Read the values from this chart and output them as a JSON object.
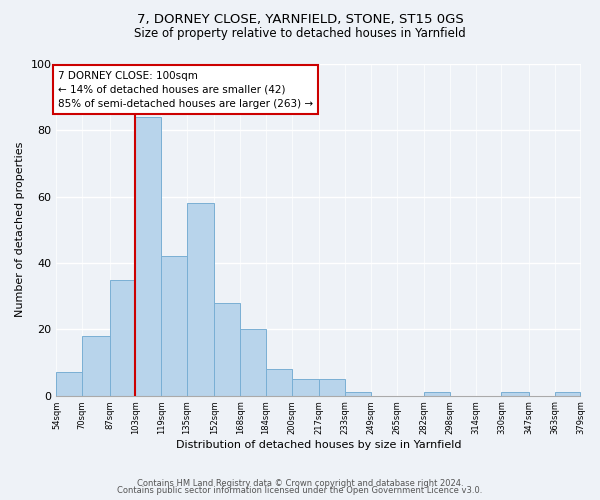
{
  "title": "7, DORNEY CLOSE, YARNFIELD, STONE, ST15 0GS",
  "subtitle": "Size of property relative to detached houses in Yarnfield",
  "xlabel": "Distribution of detached houses by size in Yarnfield",
  "ylabel": "Number of detached properties",
  "bar_color": "#b8d4eb",
  "bar_edge_color": "#7aafd4",
  "bins": [
    54,
    70,
    87,
    103,
    119,
    135,
    152,
    168,
    184,
    200,
    217,
    233,
    249,
    265,
    282,
    298,
    314,
    330,
    347,
    363,
    379
  ],
  "counts": [
    7,
    18,
    35,
    84,
    42,
    58,
    28,
    20,
    8,
    5,
    5,
    1,
    0,
    0,
    1,
    0,
    0,
    1,
    0,
    1
  ],
  "tick_labels": [
    "54sqm",
    "70sqm",
    "87sqm",
    "103sqm",
    "119sqm",
    "135sqm",
    "152sqm",
    "168sqm",
    "184sqm",
    "200sqm",
    "217sqm",
    "233sqm",
    "249sqm",
    "265sqm",
    "282sqm",
    "298sqm",
    "314sqm",
    "330sqm",
    "347sqm",
    "363sqm",
    "379sqm"
  ],
  "vline_x": 103,
  "vline_color": "#cc0000",
  "annotation_line1": "7 DORNEY CLOSE: 100sqm",
  "annotation_line2": "← 14% of detached houses are smaller (42)",
  "annotation_line3": "85% of semi-detached houses are larger (263) →",
  "annotation_box_color": "#ffffff",
  "annotation_box_edge": "#cc0000",
  "ylim": [
    0,
    100
  ],
  "yticks": [
    0,
    20,
    40,
    60,
    80,
    100
  ],
  "footer1": "Contains HM Land Registry data © Crown copyright and database right 2024.",
  "footer2": "Contains public sector information licensed under the Open Government Licence v3.0.",
  "bg_color": "#eef2f7"
}
